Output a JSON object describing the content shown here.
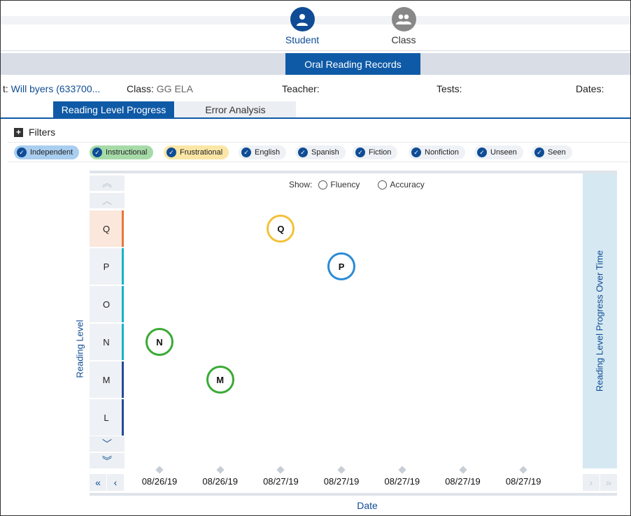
{
  "nav": {
    "student_label": "Student",
    "class_label": "Class"
  },
  "banner": {
    "title": "Oral Reading Records"
  },
  "info": {
    "student_prefix": "t:",
    "student_name": "Will byers (633700...",
    "class_label": "Class:",
    "class_value": "GG ELA",
    "teacher_label": "Teacher:",
    "tests_label": "Tests:",
    "dates_label": "Dates:"
  },
  "tabs": [
    {
      "label": "Reading Level Progress",
      "active": true
    },
    {
      "label": "Error Analysis",
      "active": false
    }
  ],
  "filters": {
    "title": "Filters",
    "chips": [
      {
        "label": "Independent",
        "checked": true,
        "color": "#a9cef0"
      },
      {
        "label": "Instructional",
        "checked": true,
        "color": "#a6dba8"
      },
      {
        "label": "Frustrational",
        "checked": true,
        "color": "#fbe6a6"
      },
      {
        "label": "English",
        "checked": true
      },
      {
        "label": "Spanish",
        "checked": true
      },
      {
        "label": "Fiction",
        "checked": true
      },
      {
        "label": "Nonfiction",
        "checked": true
      },
      {
        "label": "Unseen",
        "checked": true
      },
      {
        "label": "Seen",
        "checked": true
      }
    ]
  },
  "show": {
    "label": "Show:",
    "options": [
      {
        "label": "Fluency",
        "selected": false
      },
      {
        "label": "Accuracy",
        "selected": false
      }
    ]
  },
  "chart_data": {
    "type": "scatter",
    "ylabel": "Reading Level",
    "xlabel": "Date",
    "side_title": "Reading Level Progress Over Time",
    "y_levels": [
      "Q",
      "P",
      "O",
      "N",
      "M",
      "L"
    ],
    "y_level_colors": [
      "#e8763a",
      "#19b3c9",
      "#19b3c9",
      "#19b3c9",
      "#244a9a",
      "#244a9a"
    ],
    "x_dates": [
      "08/26/19",
      "08/26/19",
      "08/27/19",
      "08/27/19",
      "08/27/19",
      "08/27/19",
      "08/27/19"
    ],
    "points": [
      {
        "x_index": 0,
        "level": "N",
        "color": "#3aaa35"
      },
      {
        "x_index": 1,
        "level": "M",
        "color": "#3aaa35"
      },
      {
        "x_index": 2,
        "level": "Q",
        "color": "#f3c13a"
      },
      {
        "x_index": 3,
        "level": "P",
        "color": "#2a8bd6"
      }
    ]
  },
  "icons": {
    "student": "person-icon",
    "class": "group-icon",
    "filters": "plus-icon",
    "check": "check-icon"
  }
}
